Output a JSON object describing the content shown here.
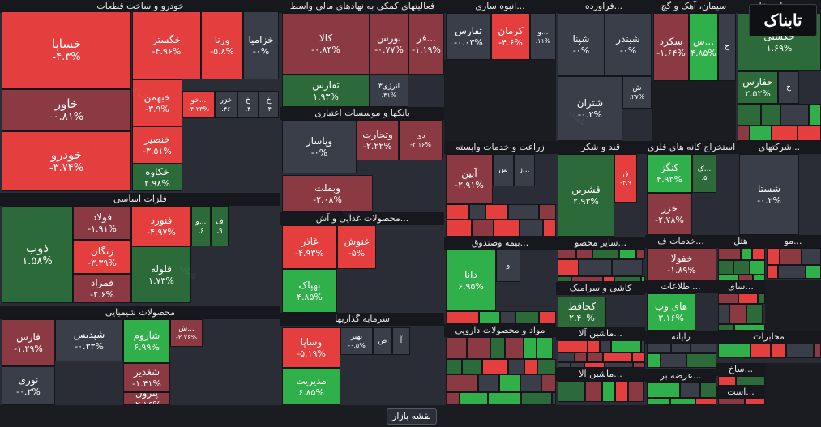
{
  "brand": "تابناک",
  "button_label": "نقشه بازار",
  "watermark": "تابناک",
  "colors": {
    "background": "#1a1c22",
    "neutral": "#3a3e48",
    "red_strong": "#e53e3e",
    "red_dark": "#8b3a44",
    "green_strong": "#2fb04a",
    "green_dark": "#2d6a3a"
  },
  "sectors": [
    {
      "id": "khodro",
      "title": "خودرو و ساخت قطعات",
      "tiles": [
        {
          "name": "خساپا",
          "change": "-۴.۳%"
        },
        {
          "name": "خاور",
          "change": "-۰.۸۱%"
        },
        {
          "name": "خودرو",
          "change": "-۳.۷۴%"
        },
        {
          "name": "خگستر",
          "change": "-۴.۹۶%"
        },
        {
          "name": "ورنا",
          "change": "-۵.۸%"
        },
        {
          "name": "خزامیا",
          "change": "-۰%"
        },
        {
          "name": "خبهمن",
          "change": "-۳.۹%"
        },
        {
          "name": "خنصیر",
          "change": "-۳.۵۱%"
        },
        {
          "name": "خکاوه",
          "change": "۲.۹۸%"
        },
        {
          "name": "خو...",
          "change": "-۴.۲۳%"
        },
        {
          "name": "خزر",
          "change": ".۴۶"
        },
        {
          "name": "خ",
          "change": ".۴"
        },
        {
          "name": "خ",
          "change": ".۴"
        }
      ]
    },
    {
      "id": "felezat",
      "title": "فلزات اساسی",
      "tiles": [
        {
          "name": "ذوب",
          "change": "۱.۵۸%"
        },
        {
          "name": "فولاد",
          "change": "-۱.۹۱%"
        },
        {
          "name": "زنگان",
          "change": "-۳.۳۹%"
        },
        {
          "name": "فمراد",
          "change": "-۲.۶%"
        },
        {
          "name": "فنورد",
          "change": "-۴.۹۷%"
        },
        {
          "name": "فلوله",
          "change": "۱.۷۳%"
        },
        {
          "name": "و...",
          "change": ".۶"
        },
        {
          "name": "ف",
          "change": ".۹"
        }
      ]
    },
    {
      "id": "shimiayi",
      "title": "محصولات شیمیایی",
      "tiles": [
        {
          "name": "فارس",
          "change": "-۱.۲۹%"
        },
        {
          "name": "نوری",
          "change": "-۰.۲%"
        },
        {
          "name": "شپدیس",
          "change": "-۰.۳۳%"
        },
        {
          "name": "شاروم",
          "change": "۶.۹۹%"
        },
        {
          "name": "ش...",
          "change": "-۲.۷۶%"
        },
        {
          "name": "شغدیر",
          "change": "-۱.۴۱%"
        },
        {
          "name": "پترول",
          "change": "-۲.۱۶%"
        }
      ]
    },
    {
      "id": "mali",
      "title": "فعالیتهای کمکی به نهادهای مالی واسط",
      "tiles": [
        {
          "name": "کالا",
          "change": "-۰.۸۴%"
        },
        {
          "name": "بورس",
          "change": "-۰.۷۷%"
        },
        {
          "name": "فر...",
          "change": "-۱.۱۹%"
        },
        {
          "name": "تفارس",
          "change": "۱.۹۳%"
        },
        {
          "name": "انرژی۳",
          "change": ".۴۱%"
        }
      ]
    },
    {
      "id": "bank",
      "title": "بانکها و موسسات اعتباری",
      "tiles": [
        {
          "name": "وپاسار",
          "change": "-۰%"
        },
        {
          "name": "وتجارت",
          "change": "-۲.۲۲%"
        },
        {
          "name": "دی",
          "change": "-۲.۱۶%"
        },
        {
          "name": "وبملت",
          "change": "-۲.۰۸%"
        }
      ]
    },
    {
      "id": "ghazayi",
      "title": "محصولات غذایی و آش...",
      "tiles": [
        {
          "name": "غاذر",
          "change": "-۴.۹۳%"
        },
        {
          "name": "غنوش",
          "change": "-۵%"
        },
        {
          "name": "بهپاک",
          "change": "۴.۸۵%"
        }
      ]
    },
    {
      "id": "sarmaye",
      "title": "سرمایه گذاریها",
      "tiles": [
        {
          "name": "وساپا",
          "change": "-۵.۱۹%"
        },
        {
          "name": "مدیریت",
          "change": "۶.۸۵%"
        },
        {
          "name": "بهیر",
          "change": "-۰.۵%"
        },
        {
          "name": "ص",
          "change": ""
        },
        {
          "name": "آ",
          "change": ""
        }
      ]
    },
    {
      "id": "anbouh",
      "title": "انبوه سازی...",
      "tiles": [
        {
          "name": "ثفارس",
          "change": "-۰.۰۳%"
        },
        {
          "name": "کرمان",
          "change": "-۴.۶%"
        },
        {
          "name": "و...",
          "change": ".۱۱%"
        }
      ]
    },
    {
      "id": "zeraat",
      "title": "زراعت و خدمات وابسته",
      "tiles": [
        {
          "name": "آبین",
          "change": "-۲.۹۱%"
        },
        {
          "name": "س",
          "change": ""
        },
        {
          "name": "ز...",
          "change": ""
        }
      ]
    },
    {
      "id": "bime",
      "title": "بیمه وصندوق...",
      "tiles": [
        {
          "name": "دانا",
          "change": "۶.۹۵%"
        },
        {
          "name": "و",
          "change": ""
        }
      ]
    },
    {
      "id": "darou",
      "title": "مواد و محصولات دارویی",
      "tiles": []
    },
    {
      "id": "farvardeh",
      "title": "فراورده...",
      "tiles": [
        {
          "name": "شپنا",
          "change": "-۰%"
        },
        {
          "name": "شبندر",
          "change": "-۰%"
        },
        {
          "name": "شتران",
          "change": "-۰.۲%"
        },
        {
          "name": "ش",
          "change": ".۲۷%"
        }
      ]
    },
    {
      "id": "ghand",
      "title": "قند و شکر",
      "tiles": [
        {
          "name": "قشرین",
          "change": "۲.۹۳%"
        },
        {
          "name": "ق",
          "change": "-۴.۹"
        }
      ]
    },
    {
      "id": "sayer",
      "title": "سایر محصو...",
      "tiles": []
    },
    {
      "id": "kashi",
      "title": "کاشی و سرامیک",
      "tiles": [
        {
          "name": "کحافظ",
          "change": "۲.۴۰%"
        }
      ]
    },
    {
      "id": "mashin1",
      "title": "ماشین آلا...",
      "tiles": []
    },
    {
      "id": "mashin2",
      "title": "ماشین آلا...",
      "tiles": []
    },
    {
      "id": "siman",
      "title": "سیمان، آهک و گچ",
      "tiles": [
        {
          "name": "سکرد",
          "change": "-۱.۶۴%"
        },
        {
          "name": "س...",
          "change": "۴.۸۵%"
        },
        {
          "name": "ح",
          "change": ""
        }
      ]
    },
    {
      "id": "estekhraj",
      "title": "استخراج کانه های فلزی",
      "tiles": [
        {
          "name": "کنگز",
          "change": "۴.۹۳%"
        },
        {
          "name": "خزر",
          "change": "-۲.۷۸%"
        },
        {
          "name": "ک...",
          "change": ".۵"
        }
      ]
    },
    {
      "id": "khadamat",
      "title": "خدمات ف...",
      "tiles": [
        {
          "name": "خفولا",
          "change": "-۱.۸۹%"
        }
      ]
    },
    {
      "id": "etelaat",
      "title": "اطلاعات...",
      "tiles": [
        {
          "name": "های وب",
          "change": "۳.۱۶%"
        }
      ]
    },
    {
      "id": "rayane",
      "title": "رایانه",
      "tiles": []
    },
    {
      "id": "arze",
      "title": "عرضه بر...",
      "tiles": []
    },
    {
      "id": "haml",
      "title": "حمل ونقل...",
      "tiles": [
        {
          "name": "حکشتی",
          "change": "۱.۶۹%"
        },
        {
          "name": "حفارس",
          "change": "۲.۵۲%"
        },
        {
          "name": "ح",
          "change": ""
        }
      ]
    },
    {
      "id": "sherkat",
      "title": "شرکتهای...",
      "tiles": [
        {
          "name": "شستا",
          "change": "-۰.۲%"
        }
      ]
    },
    {
      "id": "hotel",
      "title": "هتل",
      "tiles": []
    },
    {
      "id": "mo",
      "title": "مو...",
      "tiles": []
    },
    {
      "id": "saze",
      "title": "سای...",
      "tiles": []
    },
    {
      "id": "mokhaberat",
      "title": "مخابرات",
      "tiles": []
    },
    {
      "id": "sakht",
      "title": "ساخ...",
      "tiles": []
    },
    {
      "id": "ast",
      "title": "است...",
      "tiles": []
    }
  ]
}
